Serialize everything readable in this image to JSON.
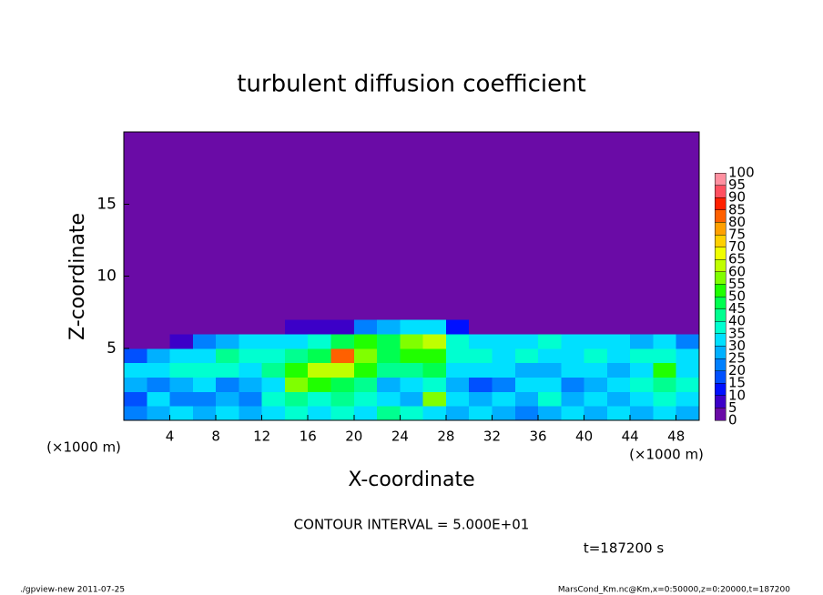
{
  "chart_data": {
    "type": "heatmap",
    "title": "turbulent diffusion coefficient",
    "x_label": "X-coordinate",
    "y_label": "Z-coordinate",
    "x_unit_label": "(×1000 m)",
    "y_unit_label": "(×1000 m)",
    "contour_note": "CONTOUR INTERVAL = 5.000E+01",
    "time_label": "t=187200 s",
    "footer_left": "./gpview-new  2011-07-25",
    "footer_right": "MarsCond_Km.nc@Km,x=0:50000,z=0:20000,t=187200",
    "xlim": [
      0,
      50
    ],
    "ylim": [
      0,
      20
    ],
    "xticks": [
      4,
      8,
      12,
      16,
      20,
      24,
      28,
      32,
      36,
      40,
      44,
      48
    ],
    "yticks": [
      5,
      10,
      15
    ],
    "x": [
      0,
      2,
      4,
      6,
      8,
      10,
      12,
      14,
      16,
      18,
      20,
      22,
      24,
      26,
      28,
      30,
      32,
      34,
      36,
      38,
      40,
      42,
      44,
      46,
      48,
      50
    ],
    "y": [
      0,
      1,
      2,
      3,
      4,
      5,
      6,
      7,
      20
    ],
    "values": [
      [
        20,
        25,
        30,
        25,
        30,
        25,
        30,
        35,
        30,
        35,
        30,
        40,
        35,
        30,
        25,
        30,
        25,
        20,
        25,
        30,
        25,
        30,
        25,
        30,
        25
      ],
      [
        15,
        30,
        20,
        20,
        25,
        20,
        35,
        40,
        35,
        40,
        35,
        30,
        25,
        55,
        30,
        25,
        30,
        25,
        35,
        25,
        30,
        25,
        30,
        35,
        30
      ],
      [
        25,
        20,
        25,
        30,
        20,
        25,
        30,
        55,
        50,
        45,
        40,
        25,
        30,
        35,
        25,
        15,
        20,
        30,
        30,
        20,
        25,
        30,
        35,
        40,
        35
      ],
      [
        30,
        30,
        35,
        35,
        35,
        30,
        40,
        50,
        60,
        60,
        50,
        40,
        40,
        45,
        30,
        30,
        30,
        25,
        25,
        30,
        30,
        25,
        30,
        50,
        30
      ],
      [
        15,
        25,
        30,
        30,
        40,
        35,
        35,
        40,
        45,
        80,
        55,
        45,
        50,
        50,
        35,
        35,
        30,
        35,
        30,
        30,
        35,
        30,
        35,
        35,
        30
      ],
      [
        0,
        0,
        5,
        20,
        25,
        30,
        30,
        30,
        35,
        45,
        50,
        45,
        55,
        60,
        35,
        30,
        30,
        30,
        35,
        30,
        30,
        30,
        25,
        30,
        20
      ],
      [
        0,
        0,
        0,
        0,
        0,
        0,
        0,
        5,
        5,
        5,
        20,
        25,
        30,
        30,
        10,
        0,
        0,
        0,
        0,
        0,
        0,
        0,
        0,
        0,
        0
      ],
      [
        0,
        0,
        0,
        0,
        0,
        0,
        0,
        0,
        0,
        0,
        0,
        0,
        0,
        0,
        0,
        0,
        0,
        0,
        0,
        0,
        0,
        0,
        0,
        0,
        0
      ]
    ],
    "levels": [
      0,
      5,
      10,
      15,
      20,
      25,
      30,
      35,
      40,
      45,
      50,
      55,
      60,
      65,
      70,
      75,
      80,
      85,
      90,
      95,
      100
    ],
    "colors": [
      "#6a0ba6",
      "#3c00c8",
      "#0010ff",
      "#0050ff",
      "#0080ff",
      "#00b0ff",
      "#00e0ff",
      "#00ffd0",
      "#00ff90",
      "#00ff50",
      "#20ff00",
      "#80ff00",
      "#c0ff00",
      "#f0ff00",
      "#ffd000",
      "#ffa000",
      "#ff6000",
      "#ff2000",
      "#ff5060",
      "#ff90a0"
    ]
  }
}
